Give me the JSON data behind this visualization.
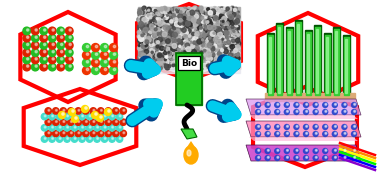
{
  "bg_color": "#ffffff",
  "hex_color": "#ff0000",
  "hex_lw": 3.0,
  "arrow_color": "#00ccee",
  "arrow_dark": "#004488",
  "pump_green": "#22cc22",
  "pump_dark": "#006600",
  "pump_label": "Bio",
  "drop_yellow": "#ffaa00",
  "drop_orange": "#ee8800",
  "figsize": [
    3.78,
    1.77
  ],
  "dpi": 100,
  "rainbow_colors": [
    "#ff0000",
    "#ff8800",
    "#ffff00",
    "#00ee00",
    "#0000ff",
    "#8800cc"
  ],
  "rod_green": "#33cc33",
  "rod_dark": "#005500",
  "sheet_purple": "#cc44cc",
  "sheet_pink": "#ff88bb",
  "sheet_lavender": "#dd99ee"
}
